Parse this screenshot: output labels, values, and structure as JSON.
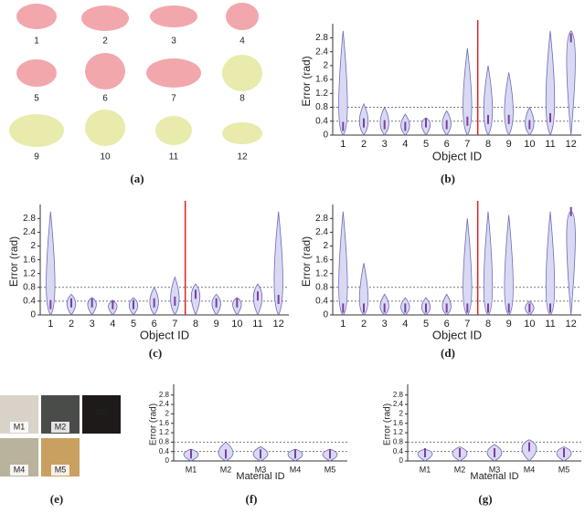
{
  "panels": {
    "a": {
      "caption": "(a)",
      "labels": [
        "1",
        "2",
        "3",
        "4",
        "5",
        "6",
        "7",
        "8",
        "9",
        "10",
        "11",
        "12"
      ]
    },
    "e": {
      "caption": "(e)",
      "labels": [
        "M1",
        "M2",
        "M3",
        "M4",
        "M5"
      ]
    }
  },
  "chart_data": [
    {
      "type": "violin",
      "caption": "(b)",
      "xlabel": "Object ID",
      "ylabel": "Error (rad)",
      "categories": [
        "1",
        "2",
        "3",
        "4",
        "5",
        "6",
        "7",
        "8",
        "9",
        "10",
        "11",
        "12"
      ],
      "medians": [
        0.25,
        0.35,
        0.3,
        0.25,
        0.35,
        0.3,
        0.4,
        0.45,
        0.45,
        0.3,
        0.5,
        2.8
      ],
      "maxima": [
        3.0,
        0.9,
        0.8,
        0.6,
        0.5,
        0.7,
        2.5,
        2.0,
        1.8,
        0.8,
        3.0,
        3.0
      ],
      "color": "#d9d9f3",
      "ylim": [
        0,
        3.1
      ],
      "yticks": [
        0,
        0.4,
        0.8,
        1.2,
        1.6,
        2,
        2.4,
        2.8
      ],
      "reference_lines": [
        0.4,
        0.8
      ]
    },
    {
      "type": "violin",
      "caption": "(c)",
      "xlabel": "Object ID",
      "ylabel": "Error (rad)",
      "categories": [
        "1",
        "2",
        "3",
        "4",
        "5",
        "6",
        "7",
        "8",
        "9",
        "10",
        "11",
        "12"
      ],
      "medians": [
        0.3,
        0.35,
        0.35,
        0.3,
        0.3,
        0.35,
        0.4,
        0.6,
        0.35,
        0.35,
        0.55,
        0.45
      ],
      "maxima": [
        3.0,
        0.6,
        0.5,
        0.4,
        0.5,
        0.8,
        1.1,
        0.9,
        0.6,
        0.5,
        0.9,
        3.0
      ],
      "color": "#d9d9f3",
      "ylim": [
        0,
        3.1
      ],
      "yticks": [
        0,
        0.4,
        0.8,
        1.2,
        1.6,
        2,
        2.4,
        2.8
      ],
      "reference_lines": [
        0.4,
        0.8
      ]
    },
    {
      "type": "violin",
      "caption": "(d)",
      "xlabel": "Object ID",
      "ylabel": "Error (rad)",
      "categories": [
        "1",
        "2",
        "3",
        "4",
        "5",
        "6",
        "7",
        "8",
        "9",
        "10",
        "11",
        "12"
      ],
      "medians": [
        0.2,
        0.2,
        0.2,
        0.2,
        0.2,
        0.2,
        0.2,
        0.2,
        0.2,
        0.2,
        0.2,
        3.0
      ],
      "maxima": [
        3.0,
        1.5,
        0.6,
        0.5,
        0.5,
        0.6,
        2.8,
        3.0,
        2.9,
        0.4,
        3.0,
        3.0
      ],
      "color": "#d9d9f3",
      "ylim": [
        0,
        3.1
      ],
      "yticks": [
        0,
        0.4,
        0.8,
        1.2,
        1.6,
        2,
        2.4,
        2.8
      ],
      "reference_lines": [
        0.4,
        0.8
      ]
    },
    {
      "type": "violin",
      "caption": "(f)",
      "xlabel": "Material ID",
      "ylabel": "Error (rad)",
      "categories": [
        "M1",
        "M2",
        "M3",
        "M4",
        "M5"
      ],
      "medians": [
        0.3,
        0.3,
        0.3,
        0.3,
        0.3
      ],
      "maxima": [
        0.5,
        0.8,
        0.6,
        0.5,
        0.5
      ],
      "color": "#d9d9f3",
      "ylim": [
        0,
        3.1
      ],
      "yticks": [
        0,
        0.4,
        0.8,
        1.2,
        1.6,
        2,
        2.4,
        2.8
      ],
      "reference_lines": [
        0.4,
        0.8
      ]
    },
    {
      "type": "violin",
      "caption": "(g)",
      "xlabel": "Material ID",
      "ylabel": "Error (rad)",
      "categories": [
        "M1",
        "M2",
        "M3",
        "M4",
        "M5"
      ],
      "medians": [
        0.35,
        0.35,
        0.35,
        0.6,
        0.35
      ],
      "maxima": [
        0.5,
        0.6,
        0.7,
        0.9,
        0.6
      ],
      "color": "#d9d9f3",
      "ylim": [
        0,
        3.1
      ],
      "yticks": [
        0,
        0.4,
        0.8,
        1.2,
        1.6,
        2,
        2.4,
        2.8
      ],
      "reference_lines": [
        0.4,
        0.8
      ]
    }
  ]
}
